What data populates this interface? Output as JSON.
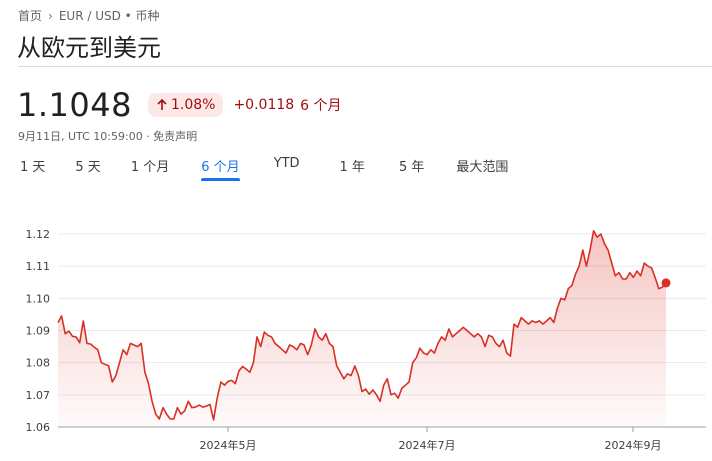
{
  "breadcrumb": {
    "home": "首页",
    "current": "EUR / USD • 币种"
  },
  "title": "从欧元到美元",
  "quote": {
    "price": "1.1048",
    "change_percent": "1.08%",
    "change_abs": "+0.0118",
    "period": "6 个月",
    "timestamp": "9月11日, UTC 10:59:00 · 免责声明"
  },
  "tabs": [
    {
      "label": "1 天"
    },
    {
      "label": "5 天"
    },
    {
      "label": "1 个月"
    },
    {
      "label": "6 个月",
      "active": true
    },
    {
      "label": "YTD"
    },
    {
      "label": "1 年"
    },
    {
      "label": "5 年"
    },
    {
      "label": "最大范围"
    }
  ],
  "colors": {
    "line": "#d93025",
    "active_tab": "#1a73e8",
    "negative_bg": "#fce8e6",
    "change_text": "#a50e0e"
  },
  "chart_data": {
    "type": "area",
    "x_labels": [
      "2024年5月",
      "2024年7月",
      "2024年9月"
    ],
    "y_ticks": [
      "1.12",
      "1.11",
      "1.10",
      "1.09",
      "1.08",
      "1.07",
      "1.06"
    ],
    "ylim": [
      1.06,
      1.12
    ],
    "grid": true,
    "series": [
      {
        "values": [
          1.0925,
          1.0945,
          1.089,
          1.0898,
          1.0882,
          1.088,
          1.0862,
          1.093,
          1.086,
          1.0858,
          1.0848,
          1.084,
          1.08,
          1.0795,
          1.079,
          1.074,
          1.076,
          1.08,
          1.084,
          1.0825,
          1.086,
          1.0855,
          1.085,
          1.086,
          1.077,
          1.0735,
          1.068,
          1.064,
          1.0625,
          1.066,
          1.064,
          1.0625,
          1.0625,
          1.066,
          1.064,
          1.065,
          1.068,
          1.066,
          1.0662,
          1.0668,
          1.0662,
          1.0665,
          1.067,
          1.0622,
          1.069,
          1.074,
          1.073,
          1.0742,
          1.0745,
          1.0735,
          1.0775,
          1.0788,
          1.078,
          1.077,
          1.08,
          1.088,
          1.085,
          1.0895,
          1.0885,
          1.088,
          1.086,
          1.085,
          1.084,
          1.083,
          1.0855,
          1.085,
          1.084,
          1.086,
          1.0855,
          1.0825,
          1.0855,
          1.0905,
          1.088,
          1.087,
          1.089,
          1.086,
          1.085,
          1.079,
          1.077,
          1.075,
          1.0765,
          1.076,
          1.079,
          1.076,
          1.071,
          1.0718,
          1.0702,
          1.0715,
          1.07,
          1.068,
          1.073,
          1.075,
          1.07,
          1.0705,
          1.069,
          1.072,
          1.073,
          1.074,
          1.08,
          1.0815,
          1.0845,
          1.083,
          1.0825,
          1.084,
          1.083,
          1.086,
          1.088,
          1.087,
          1.0905,
          1.088,
          1.089,
          1.09,
          1.091,
          1.09,
          1.089,
          1.088,
          1.089,
          1.088,
          1.085,
          1.0885,
          1.088,
          1.086,
          1.085,
          1.087,
          1.083,
          1.082,
          1.092,
          1.091,
          1.094,
          1.093,
          1.092,
          1.093,
          1.0925,
          1.093,
          1.092,
          1.093,
          1.094,
          1.0925,
          1.097,
          1.1,
          1.0995,
          1.103,
          1.104,
          1.1075,
          1.11,
          1.115,
          1.11,
          1.115,
          1.121,
          1.119,
          1.12,
          1.117,
          1.115,
          1.111,
          1.107,
          1.108,
          1.106,
          1.106,
          1.108,
          1.1065,
          1.1085,
          1.107,
          1.111,
          1.11,
          1.1095,
          1.1065,
          1.103,
          1.1035,
          1.1048
        ]
      }
    ]
  }
}
